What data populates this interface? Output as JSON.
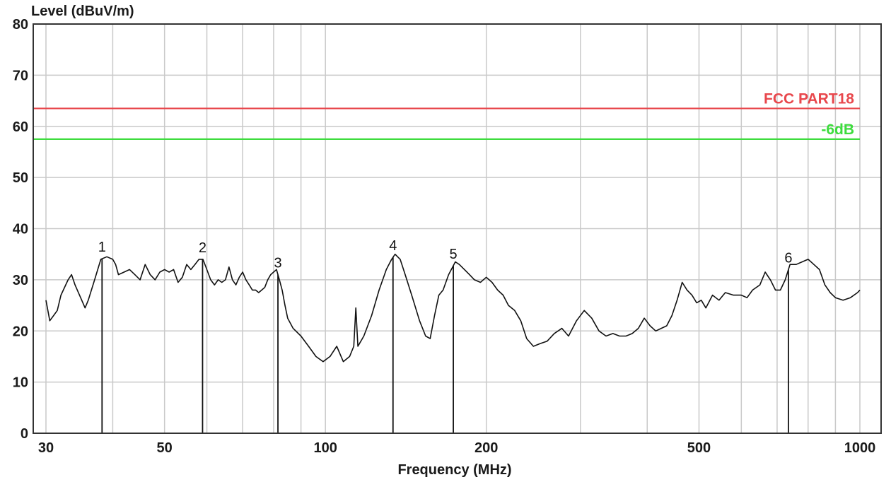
{
  "chart_data": {
    "type": "line",
    "title": "",
    "ylabel": "Level (dBuV/m)",
    "xlabel": "Frequency (MHz)",
    "x_scale": "log",
    "xlim": [
      30,
      1000
    ],
    "ylim": [
      0,
      80
    ],
    "x_ticks": [
      30,
      50,
      100,
      200,
      500,
      1000
    ],
    "x_tick_labels": [
      "30",
      "50",
      "100",
      "200",
      "500",
      "1000"
    ],
    "y_ticks": [
      0,
      10,
      20,
      30,
      40,
      50,
      60,
      70,
      80
    ],
    "y_tick_labels": [
      "0",
      "10",
      "20",
      "30",
      "40",
      "50",
      "60",
      "70",
      "80"
    ],
    "grid": true,
    "limit_lines": [
      {
        "name": "FCC PART18",
        "value": 63.5,
        "color": "#e8474c"
      },
      {
        "name": "-6dB",
        "value": 57.5,
        "color": "#3ddc3d"
      }
    ],
    "series": [
      {
        "color": "#111111",
        "points": [
          [
            30,
            26
          ],
          [
            30.5,
            22
          ],
          [
            31,
            23
          ],
          [
            31.5,
            24
          ],
          [
            32,
            27
          ],
          [
            33,
            30
          ],
          [
            33.5,
            31
          ],
          [
            34,
            29
          ],
          [
            35,
            26
          ],
          [
            35.5,
            24.5
          ],
          [
            36,
            26
          ],
          [
            37,
            30
          ],
          [
            37.5,
            32
          ],
          [
            38,
            34
          ],
          [
            39,
            34.5
          ],
          [
            40,
            34
          ],
          [
            40.5,
            33
          ],
          [
            41,
            31
          ],
          [
            42,
            31.5
          ],
          [
            43,
            32
          ],
          [
            44,
            31
          ],
          [
            45,
            30
          ],
          [
            46,
            33
          ],
          [
            47,
            31
          ],
          [
            48,
            30
          ],
          [
            49,
            31.5
          ],
          [
            50,
            32
          ],
          [
            51,
            31.5
          ],
          [
            52,
            32
          ],
          [
            53,
            29.5
          ],
          [
            54,
            30.5
          ],
          [
            55,
            33
          ],
          [
            56,
            32
          ],
          [
            57,
            33
          ],
          [
            58,
            34
          ],
          [
            59,
            34
          ],
          [
            60,
            32
          ],
          [
            61,
            30
          ],
          [
            62,
            29
          ],
          [
            63,
            30
          ],
          [
            64,
            29.5
          ],
          [
            65,
            30
          ],
          [
            66,
            32.5
          ],
          [
            67,
            30
          ],
          [
            68,
            29
          ],
          [
            69,
            30.5
          ],
          [
            70,
            31.5
          ],
          [
            71,
            30
          ],
          [
            72,
            29
          ],
          [
            73,
            28
          ],
          [
            74,
            28
          ],
          [
            75,
            27.5
          ],
          [
            76,
            28
          ],
          [
            77,
            28.5
          ],
          [
            78,
            30
          ],
          [
            79,
            31
          ],
          [
            80,
            31.5
          ],
          [
            81,
            32
          ],
          [
            82,
            30
          ],
          [
            83,
            28
          ],
          [
            84,
            25
          ],
          [
            85,
            22.5
          ],
          [
            87,
            20.5
          ],
          [
            90,
            19
          ],
          [
            93,
            17
          ],
          [
            96,
            15
          ],
          [
            99,
            14
          ],
          [
            102,
            15
          ],
          [
            105,
            17
          ],
          [
            108,
            14
          ],
          [
            111,
            15
          ],
          [
            113,
            17
          ],
          [
            114,
            24.5
          ],
          [
            115,
            17
          ],
          [
            118,
            19
          ],
          [
            122,
            23
          ],
          [
            126,
            28
          ],
          [
            130,
            32
          ],
          [
            133,
            34
          ],
          [
            135,
            35
          ],
          [
            138,
            34
          ],
          [
            141,
            31
          ],
          [
            145,
            27
          ],
          [
            150,
            22
          ],
          [
            154,
            19
          ],
          [
            157,
            18.5
          ],
          [
            160,
            23
          ],
          [
            163,
            27
          ],
          [
            166,
            28
          ],
          [
            170,
            31
          ],
          [
            175,
            33.5
          ],
          [
            178,
            33
          ],
          [
            182,
            32
          ],
          [
            186,
            31
          ],
          [
            190,
            30
          ],
          [
            195,
            29.5
          ],
          [
            200,
            30.5
          ],
          [
            205,
            29.5
          ],
          [
            210,
            28
          ],
          [
            215,
            27
          ],
          [
            220,
            25
          ],
          [
            226,
            24
          ],
          [
            232,
            22
          ],
          [
            238,
            18.5
          ],
          [
            245,
            17
          ],
          [
            252,
            17.5
          ],
          [
            260,
            18
          ],
          [
            268,
            19.5
          ],
          [
            277,
            20.5
          ],
          [
            285,
            19
          ],
          [
            295,
            22
          ],
          [
            305,
            24
          ],
          [
            315,
            22.5
          ],
          [
            325,
            20
          ],
          [
            335,
            19
          ],
          [
            345,
            19.5
          ],
          [
            355,
            19
          ],
          [
            365,
            19
          ],
          [
            375,
            19.5
          ],
          [
            385,
            20.5
          ],
          [
            395,
            22.5
          ],
          [
            405,
            21
          ],
          [
            415,
            20
          ],
          [
            425,
            20.5
          ],
          [
            435,
            21
          ],
          [
            445,
            23
          ],
          [
            455,
            26
          ],
          [
            465,
            29.5
          ],
          [
            475,
            28
          ],
          [
            485,
            27
          ],
          [
            495,
            25.5
          ],
          [
            505,
            26
          ],
          [
            515,
            24.5
          ],
          [
            530,
            27
          ],
          [
            545,
            26
          ],
          [
            560,
            27.5
          ],
          [
            580,
            27
          ],
          [
            600,
            27
          ],
          [
            615,
            26.5
          ],
          [
            630,
            28
          ],
          [
            650,
            29
          ],
          [
            665,
            31.5
          ],
          [
            680,
            30
          ],
          [
            695,
            28
          ],
          [
            710,
            28
          ],
          [
            725,
            30
          ],
          [
            740,
            33
          ],
          [
            760,
            33
          ],
          [
            780,
            33.5
          ],
          [
            800,
            34
          ],
          [
            820,
            33
          ],
          [
            840,
            32
          ],
          [
            860,
            29
          ],
          [
            880,
            27.5
          ],
          [
            900,
            26.5
          ],
          [
            930,
            26
          ],
          [
            960,
            26.5
          ],
          [
            990,
            27.5
          ],
          [
            1000,
            28
          ]
        ]
      }
    ],
    "markers": [
      {
        "label": "1",
        "x": 38.2
      },
      {
        "label": "2",
        "x": 58.9
      },
      {
        "label": "3",
        "x": 81.5
      },
      {
        "label": "4",
        "x": 133.8
      },
      {
        "label": "5",
        "x": 173.5
      },
      {
        "label": "6",
        "x": 735
      }
    ]
  }
}
